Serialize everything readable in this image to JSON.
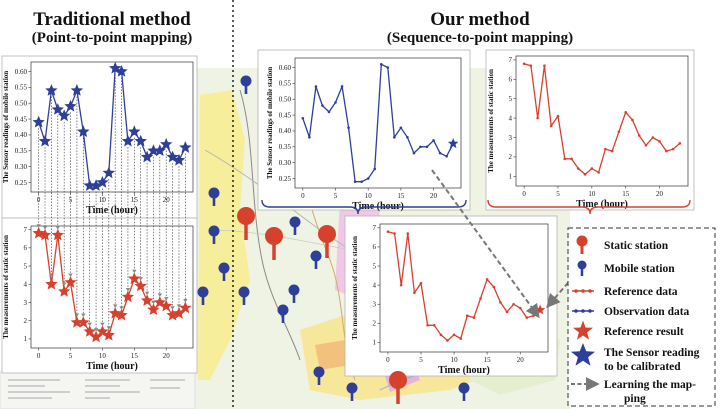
{
  "titles": {
    "left_main": "Traditional method",
    "left_sub": "(Point-to-point mapping)",
    "right_main": "Our method",
    "right_sub": "(Sequence-to-point mapping)"
  },
  "colors": {
    "mobile": "#2e3f98",
    "static": "#d6412e",
    "arrow": "#777777"
  },
  "chart_data": [
    {
      "id": "mobile_readings",
      "type": "line",
      "series_name": "Observation data",
      "ylabel": "The Sensor readings of mobile station",
      "xlabel": "Time (hour)",
      "x": [
        0,
        1,
        2,
        3,
        4,
        5,
        6,
        7,
        8,
        9,
        10,
        11,
        12,
        13,
        14,
        15,
        16,
        17,
        18,
        19,
        20,
        21,
        22,
        23
      ],
      "values": [
        0.44,
        0.38,
        0.54,
        0.48,
        0.46,
        0.49,
        0.54,
        0.41,
        0.24,
        0.24,
        0.25,
        0.28,
        0.61,
        0.6,
        0.38,
        0.41,
        0.38,
        0.33,
        0.35,
        0.35,
        0.37,
        0.33,
        0.32,
        0.36
      ],
      "xticks": [
        0,
        5,
        10,
        15,
        20
      ],
      "yticks": [
        0.25,
        0.3,
        0.35,
        0.4,
        0.45,
        0.5,
        0.55,
        0.6
      ],
      "ylim": [
        0.22,
        0.63
      ]
    },
    {
      "id": "static_measurements",
      "type": "line",
      "series_name": "Reference data",
      "ylabel": "The measurements of static station",
      "xlabel": "Time (hour)",
      "x": [
        0,
        1,
        2,
        3,
        4,
        5,
        6,
        7,
        8,
        9,
        10,
        11,
        12,
        13,
        14,
        15,
        16,
        17,
        18,
        19,
        20,
        21,
        22,
        23
      ],
      "values": [
        6.8,
        6.7,
        4.0,
        6.7,
        3.6,
        4.1,
        1.9,
        1.9,
        1.4,
        1.1,
        1.4,
        1.2,
        2.4,
        2.3,
        3.3,
        4.3,
        3.9,
        3.1,
        2.6,
        3.0,
        2.8,
        2.3,
        2.4,
        2.7
      ],
      "xticks": [
        0,
        5,
        10,
        15,
        20
      ],
      "yticks": [
        1,
        2,
        3,
        4,
        5,
        6,
        7
      ],
      "ylim": [
        0.5,
        7.2
      ]
    }
  ],
  "legend": [
    {
      "icon": "static-pin",
      "label": "Static station"
    },
    {
      "icon": "mobile-pin",
      "label": "Mobile station"
    },
    {
      "icon": "red-line-dot",
      "label": "Reference data"
    },
    {
      "icon": "blue-line-dot",
      "label": "Observation data"
    },
    {
      "icon": "red-star",
      "label": "Reference result"
    },
    {
      "icon": "blue-star",
      "label": "The Sensor reading to be calibrated",
      "lines": [
        "The Sensor reading",
        "to be calibrated"
      ]
    },
    {
      "icon": "dashed-arrow",
      "label": "Learning the mapping",
      "lines": [
        "Learning the map-",
        "ping"
      ]
    }
  ]
}
